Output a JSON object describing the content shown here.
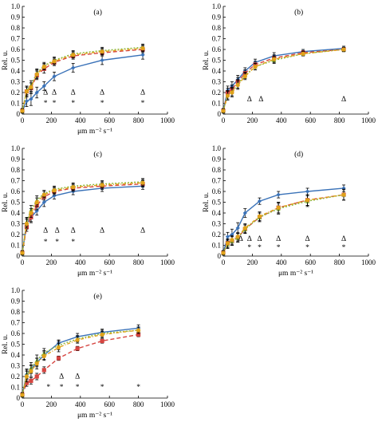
{
  "x_label": "μm m⁻² s⁻¹",
  "y_label": "Rel. u.",
  "series_colors": [
    "#3a72b8",
    "#d64541",
    "#8ab83a",
    "#e0a21a"
  ],
  "chart_data": [
    {
      "type": "line",
      "panel_label": "(a)",
      "xlabel": "μm m⁻² s⁻¹",
      "ylabel": "Rel. u.",
      "xlim": [
        0,
        1000
      ],
      "ylim": [
        0,
        1.0
      ],
      "xticks": [
        "0",
        "200",
        "400",
        "600",
        "800",
        "1000"
      ],
      "yticks": [
        "0",
        "0.1",
        "0.2",
        "0.3",
        "0.4",
        "0.5",
        "0.6",
        "0.7",
        "0.8",
        "0.9",
        "1.0"
      ],
      "grid": false,
      "x": [
        0,
        30,
        60,
        100,
        150,
        220,
        350,
        550,
        830
      ],
      "series": [
        {
          "values": [
            0.03,
            0.12,
            0.14,
            0.2,
            0.26,
            0.35,
            0.43,
            0.5,
            0.55
          ],
          "errors": [
            0.02,
            0.05,
            0.06,
            0.05,
            0.04,
            0.04,
            0.04,
            0.04,
            0.04
          ]
        },
        {
          "values": [
            0.03,
            0.21,
            0.24,
            0.36,
            0.42,
            0.48,
            0.54,
            0.57,
            0.6
          ],
          "errors": [
            0.02,
            0.05,
            0.05,
            0.04,
            0.04,
            0.03,
            0.03,
            0.03,
            0.03
          ]
        },
        {
          "values": [
            0.03,
            0.22,
            0.27,
            0.38,
            0.45,
            0.5,
            0.56,
            0.59,
            0.62
          ],
          "errors": [
            0.02,
            0.04,
            0.04,
            0.04,
            0.03,
            0.03,
            0.03,
            0.03,
            0.03
          ]
        },
        {
          "values": [
            0.03,
            0.21,
            0.25,
            0.37,
            0.44,
            0.49,
            0.55,
            0.58,
            0.61
          ],
          "errors": [
            0.02,
            0.04,
            0.04,
            0.04,
            0.03,
            0.03,
            0.03,
            0.03,
            0.03
          ]
        }
      ],
      "annotations": [
        {
          "text": "Δ",
          "x": 160,
          "y": 0.18
        },
        {
          "text": "Δ",
          "x": 220,
          "y": 0.18
        },
        {
          "text": "Δ",
          "x": 350,
          "y": 0.18
        },
        {
          "text": "Δ",
          "x": 550,
          "y": 0.18
        },
        {
          "text": "Δ",
          "x": 830,
          "y": 0.18
        },
        {
          "text": "*",
          "x": 160,
          "y": 0.08
        },
        {
          "text": "*",
          "x": 220,
          "y": 0.08
        },
        {
          "text": "*",
          "x": 350,
          "y": 0.08
        },
        {
          "text": "*",
          "x": 550,
          "y": 0.08
        },
        {
          "text": "*",
          "x": 830,
          "y": 0.08
        }
      ]
    },
    {
      "type": "line",
      "panel_label": "(b)",
      "xlabel": "",
      "ylabel": "Rel. u.",
      "xlim": [
        0,
        1000
      ],
      "ylim": [
        0,
        1.0
      ],
      "xticks": [
        "0",
        "200",
        "400",
        "600",
        "800",
        "1000"
      ],
      "yticks": [
        "0",
        "0.1",
        "0.2",
        "0.3",
        "0.4",
        "0.5",
        "0.6",
        "0.7",
        "0.8",
        "0.9",
        "1.0"
      ],
      "grid": false,
      "x": [
        0,
        30,
        60,
        100,
        150,
        220,
        350,
        550,
        830
      ],
      "series": [
        {
          "values": [
            0.03,
            0.22,
            0.26,
            0.32,
            0.4,
            0.48,
            0.54,
            0.58,
            0.61
          ],
          "errors": [
            0.02,
            0.04,
            0.04,
            0.04,
            0.03,
            0.03,
            0.03,
            0.02,
            0.02
          ]
        },
        {
          "values": [
            0.03,
            0.2,
            0.23,
            0.3,
            0.38,
            0.46,
            0.52,
            0.57,
            0.6
          ],
          "errors": [
            0.02,
            0.04,
            0.04,
            0.04,
            0.03,
            0.03,
            0.03,
            0.02,
            0.02
          ]
        },
        {
          "values": [
            0.03,
            0.18,
            0.21,
            0.28,
            0.36,
            0.44,
            0.5,
            0.56,
            0.6
          ],
          "errors": [
            0.02,
            0.04,
            0.04,
            0.04,
            0.03,
            0.03,
            0.03,
            0.02,
            0.02
          ]
        },
        {
          "values": [
            0.03,
            0.17,
            0.2,
            0.27,
            0.35,
            0.44,
            0.51,
            0.56,
            0.6
          ],
          "errors": [
            0.02,
            0.04,
            0.04,
            0.04,
            0.03,
            0.03,
            0.03,
            0.02,
            0.02
          ]
        }
      ],
      "annotations": [
        {
          "text": "Δ",
          "x": 180,
          "y": 0.12
        },
        {
          "text": "Δ",
          "x": 260,
          "y": 0.12
        },
        {
          "text": "Δ",
          "x": 830,
          "y": 0.12
        }
      ]
    },
    {
      "type": "line",
      "panel_label": "(c)",
      "xlabel": "μm m⁻² s⁻¹",
      "ylabel": "Rel. u.",
      "xlim": [
        0,
        1000
      ],
      "ylim": [
        0,
        1.0
      ],
      "xticks": [
        "0",
        "200",
        "400",
        "600",
        "800",
        "1000"
      ],
      "yticks": [
        "0",
        "0.1",
        "0.2",
        "0.3",
        "0.4",
        "0.5",
        "0.6",
        "0.7",
        "0.8",
        "0.9",
        "1.0"
      ],
      "grid": false,
      "x": [
        0,
        30,
        60,
        100,
        150,
        220,
        350,
        550,
        830
      ],
      "series": [
        {
          "values": [
            0.03,
            0.3,
            0.36,
            0.42,
            0.5,
            0.56,
            0.6,
            0.63,
            0.65
          ],
          "errors": [
            0.02,
            0.05,
            0.05,
            0.04,
            0.04,
            0.03,
            0.03,
            0.03,
            0.03
          ]
        },
        {
          "values": [
            0.03,
            0.27,
            0.36,
            0.47,
            0.55,
            0.6,
            0.63,
            0.65,
            0.67
          ],
          "errors": [
            0.02,
            0.04,
            0.04,
            0.04,
            0.03,
            0.03,
            0.03,
            0.03,
            0.03
          ]
        },
        {
          "values": [
            0.03,
            0.32,
            0.43,
            0.52,
            0.58,
            0.62,
            0.65,
            0.67,
            0.69
          ],
          "errors": [
            0.02,
            0.04,
            0.04,
            0.04,
            0.03,
            0.03,
            0.03,
            0.03,
            0.03
          ]
        },
        {
          "values": [
            0.03,
            0.3,
            0.4,
            0.5,
            0.57,
            0.61,
            0.64,
            0.66,
            0.68
          ],
          "errors": [
            0.02,
            0.04,
            0.04,
            0.04,
            0.03,
            0.03,
            0.03,
            0.03,
            0.03
          ]
        }
      ],
      "annotations": [
        {
          "text": "Δ",
          "x": 160,
          "y": 0.22
        },
        {
          "text": "Δ",
          "x": 240,
          "y": 0.22
        },
        {
          "text": "Δ",
          "x": 350,
          "y": 0.22
        },
        {
          "text": "Δ",
          "x": 550,
          "y": 0.22
        },
        {
          "text": "Δ",
          "x": 830,
          "y": 0.22
        },
        {
          "text": "*",
          "x": 160,
          "y": 0.11
        },
        {
          "text": "*",
          "x": 240,
          "y": 0.11
        },
        {
          "text": "*",
          "x": 350,
          "y": 0.11
        }
      ]
    },
    {
      "type": "line",
      "panel_label": "(d)",
      "xlabel": "μm m⁻² s⁻¹",
      "ylabel": "Rel. u.",
      "xlim": [
        0,
        1000
      ],
      "ylim": [
        0,
        1.0
      ],
      "xticks": [
        "0",
        "200",
        "400",
        "600",
        "800",
        "1000"
      ],
      "yticks": [
        "0",
        "0.1",
        "0.2",
        "0.3",
        "0.4",
        "0.5",
        "0.6",
        "0.7",
        "0.8",
        "0.9",
        "1.0"
      ],
      "grid": false,
      "x": [
        0,
        30,
        60,
        100,
        150,
        250,
        380,
        580,
        830
      ],
      "series": [
        {
          "values": [
            0.03,
            0.18,
            0.2,
            0.26,
            0.4,
            0.51,
            0.57,
            0.6,
            0.63
          ],
          "errors": [
            0.02,
            0.04,
            0.05,
            0.05,
            0.04,
            0.03,
            0.03,
            0.03,
            0.03
          ]
        },
        {
          "values": [
            0.03,
            0.12,
            0.14,
            0.17,
            0.25,
            0.36,
            0.45,
            0.52,
            0.57
          ],
          "errors": [
            0.02,
            0.04,
            0.04,
            0.04,
            0.04,
            0.04,
            0.05,
            0.05,
            0.05
          ]
        },
        {
          "values": [
            0.03,
            0.11,
            0.14,
            0.17,
            0.25,
            0.36,
            0.44,
            0.51,
            0.57
          ],
          "errors": [
            0.02,
            0.04,
            0.04,
            0.04,
            0.04,
            0.04,
            0.05,
            0.05,
            0.05
          ]
        },
        {
          "values": [
            0.03,
            0.12,
            0.15,
            0.18,
            0.26,
            0.37,
            0.45,
            0.52,
            0.57
          ],
          "errors": [
            0.02,
            0.04,
            0.04,
            0.04,
            0.04,
            0.04,
            0.05,
            0.05,
            0.05
          ]
        }
      ],
      "annotations": [
        {
          "text": "Δ",
          "x": 120,
          "y": 0.14
        },
        {
          "text": "Δ",
          "x": 180,
          "y": 0.14
        },
        {
          "text": "Δ",
          "x": 250,
          "y": 0.14
        },
        {
          "text": "Δ",
          "x": 380,
          "y": 0.14
        },
        {
          "text": "Δ",
          "x": 580,
          "y": 0.14
        },
        {
          "text": "Δ",
          "x": 830,
          "y": 0.14
        },
        {
          "text": "*",
          "x": 180,
          "y": 0.06
        },
        {
          "text": "*",
          "x": 250,
          "y": 0.06
        },
        {
          "text": "*",
          "x": 380,
          "y": 0.06
        },
        {
          "text": "*",
          "x": 580,
          "y": 0.06
        },
        {
          "text": "*",
          "x": 830,
          "y": 0.06
        }
      ]
    },
    {
      "type": "line",
      "panel_label": "(e)",
      "xlabel": "μm m⁻² s⁻¹",
      "ylabel": "Rel. u.",
      "xlim": [
        0,
        1000
      ],
      "ylim": [
        0,
        1.0
      ],
      "xticks": [
        "0",
        "200",
        "400",
        "600",
        "800",
        "1000"
      ],
      "yticks": [
        "0",
        "0.1",
        "0.2",
        "0.3",
        "0.4",
        "0.5",
        "0.6",
        "0.7",
        "0.8",
        "0.9",
        "1.0"
      ],
      "grid": false,
      "x": [
        0,
        30,
        60,
        100,
        150,
        250,
        380,
        550,
        800
      ],
      "series": [
        {
          "values": [
            0.03,
            0.22,
            0.27,
            0.33,
            0.4,
            0.51,
            0.57,
            0.61,
            0.65
          ],
          "errors": [
            0.02,
            0.04,
            0.04,
            0.04,
            0.04,
            0.03,
            0.03,
            0.03,
            0.03
          ]
        },
        {
          "values": [
            0.03,
            0.14,
            0.16,
            0.2,
            0.26,
            0.37,
            0.46,
            0.53,
            0.59
          ],
          "errors": [
            0.02,
            0.03,
            0.03,
            0.03,
            0.03,
            0.02,
            0.02,
            0.02,
            0.02
          ]
        },
        {
          "values": [
            0.03,
            0.22,
            0.28,
            0.35,
            0.42,
            0.49,
            0.55,
            0.6,
            0.63
          ],
          "errors": [
            0.02,
            0.05,
            0.05,
            0.05,
            0.04,
            0.04,
            0.03,
            0.03,
            0.03
          ]
        },
        {
          "values": [
            0.03,
            0.2,
            0.25,
            0.32,
            0.39,
            0.47,
            0.54,
            0.59,
            0.63
          ],
          "errors": [
            0.02,
            0.05,
            0.05,
            0.05,
            0.04,
            0.04,
            0.03,
            0.03,
            0.03
          ]
        }
      ],
      "annotations": [
        {
          "text": "Δ",
          "x": 270,
          "y": 0.18
        },
        {
          "text": "Δ",
          "x": 380,
          "y": 0.18
        },
        {
          "text": "*",
          "x": 180,
          "y": 0.08
        },
        {
          "text": "*",
          "x": 270,
          "y": 0.08
        },
        {
          "text": "*",
          "x": 380,
          "y": 0.08
        },
        {
          "text": "*",
          "x": 550,
          "y": 0.08
        },
        {
          "text": "*",
          "x": 800,
          "y": 0.08
        }
      ]
    }
  ]
}
